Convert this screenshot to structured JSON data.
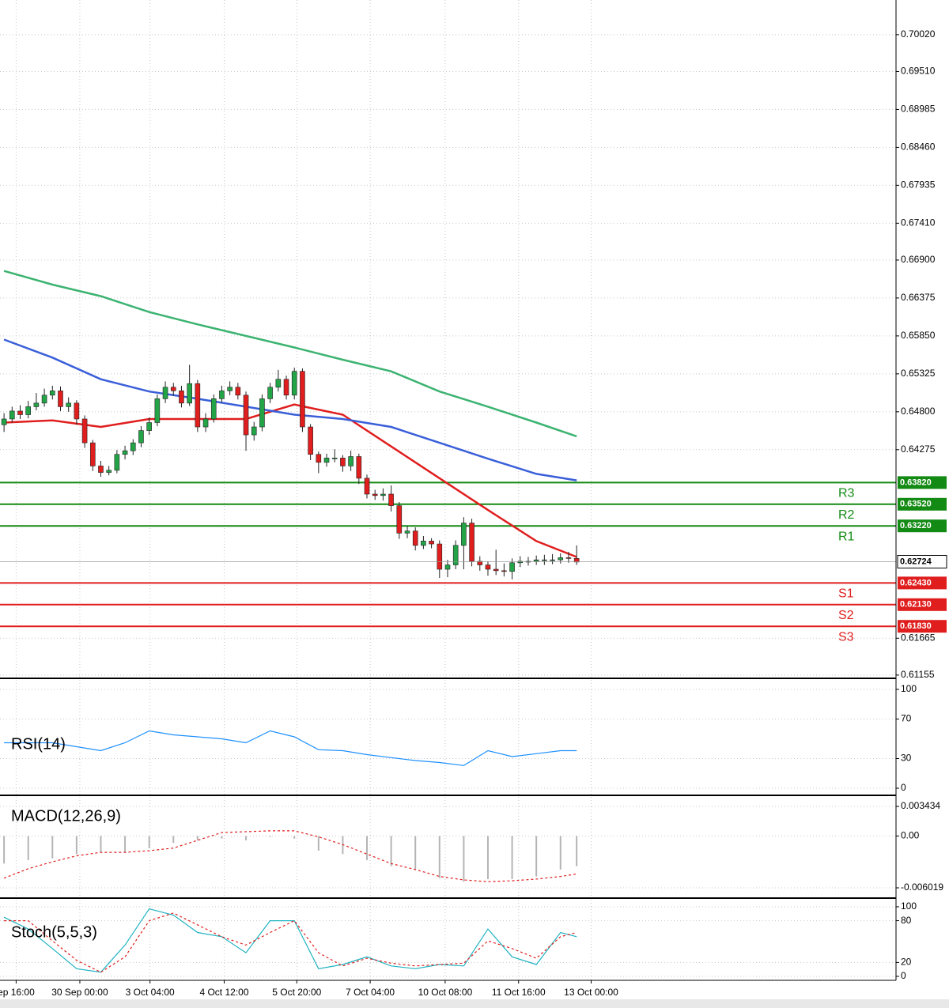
{
  "chart_data": [
    {
      "type": "candlestick",
      "open": [
        0.6462,
        0.647,
        0.6481,
        0.6476,
        0.6487,
        0.6492,
        0.6503,
        0.6509,
        0.6487,
        0.6492,
        0.647,
        0.6437,
        0.6405,
        0.6396,
        0.6399,
        0.6421,
        0.6426,
        0.6437,
        0.6454,
        0.6465,
        0.6498,
        0.6514,
        0.6509,
        0.6492,
        0.6519,
        0.6459,
        0.647,
        0.6498,
        0.6509,
        0.6514,
        0.6503,
        0.6448,
        0.6459,
        0.6498,
        0.6514,
        0.6525,
        0.6503,
        0.6536,
        0.6459,
        0.6421,
        0.641,
        0.6416,
        0.6416,
        0.6405,
        0.6418,
        0.6388,
        0.6366,
        0.6364,
        0.6366,
        0.635,
        0.6312,
        0.6315,
        0.6295,
        0.6301,
        0.6297,
        0.6262,
        0.6268,
        0.6295,
        0.6326,
        0.6273,
        0.6268,
        0.6262,
        0.626,
        0.6259,
        0.6271,
        0.6273,
        0.6273,
        0.6275,
        0.6275,
        0.6275,
        0.6278,
        0.6277
      ],
      "high": [
        0.6478,
        0.6487,
        0.6489,
        0.6495,
        0.6506,
        0.6512,
        0.6516,
        0.6515,
        0.65,
        0.6496,
        0.6475,
        0.6441,
        0.6412,
        0.6405,
        0.6427,
        0.6433,
        0.6442,
        0.646,
        0.6472,
        0.6504,
        0.6522,
        0.652,
        0.6516,
        0.6545,
        0.6524,
        0.6478,
        0.6504,
        0.6516,
        0.6522,
        0.652,
        0.6508,
        0.6466,
        0.6504,
        0.652,
        0.6538,
        0.653,
        0.6541,
        0.654,
        0.6463,
        0.6425,
        0.6422,
        0.6428,
        0.642,
        0.6426,
        0.6422,
        0.6393,
        0.6372,
        0.6374,
        0.6378,
        0.6355,
        0.6322,
        0.632,
        0.6308,
        0.6305,
        0.6302,
        0.6275,
        0.6302,
        0.6334,
        0.6332,
        0.628,
        0.6273,
        0.6289,
        0.627,
        0.6277,
        0.628,
        0.6279,
        0.6281,
        0.6282,
        0.6283,
        0.6284,
        0.6286,
        0.6295
      ],
      "low": [
        0.6452,
        0.6465,
        0.647,
        0.6471,
        0.6482,
        0.6487,
        0.6497,
        0.6481,
        0.648,
        0.6462,
        0.643,
        0.6398,
        0.639,
        0.6392,
        0.6395,
        0.6414,
        0.642,
        0.6431,
        0.6448,
        0.646,
        0.6492,
        0.6502,
        0.6486,
        0.6488,
        0.6452,
        0.6452,
        0.6465,
        0.6493,
        0.6503,
        0.6497,
        0.6426,
        0.644,
        0.6453,
        0.6492,
        0.6508,
        0.6497,
        0.6497,
        0.6452,
        0.6413,
        0.6395,
        0.6404,
        0.641,
        0.6397,
        0.6398,
        0.638,
        0.636,
        0.6358,
        0.6357,
        0.6342,
        0.6304,
        0.6305,
        0.6288,
        0.629,
        0.6291,
        0.625,
        0.6251,
        0.6262,
        0.6262,
        0.6266,
        0.626,
        0.6253,
        0.6254,
        0.6252,
        0.6248,
        0.6265,
        0.6267,
        0.6268,
        0.6268,
        0.6269,
        0.627,
        0.6271,
        0.6268
      ],
      "close": [
        0.647,
        0.6481,
        0.6476,
        0.6487,
        0.6492,
        0.6503,
        0.6509,
        0.6487,
        0.6492,
        0.647,
        0.6437,
        0.6405,
        0.6396,
        0.6399,
        0.6421,
        0.6426,
        0.6437,
        0.6454,
        0.6465,
        0.6498,
        0.6514,
        0.6509,
        0.6492,
        0.6519,
        0.6459,
        0.647,
        0.6498,
        0.6509,
        0.6514,
        0.6503,
        0.6448,
        0.6459,
        0.6498,
        0.6514,
        0.6525,
        0.6503,
        0.6536,
        0.6459,
        0.6421,
        0.641,
        0.6416,
        0.6416,
        0.6405,
        0.6418,
        0.6388,
        0.6366,
        0.6364,
        0.6366,
        0.635,
        0.6312,
        0.6315,
        0.6295,
        0.6301,
        0.6297,
        0.6262,
        0.6268,
        0.6295,
        0.6326,
        0.6273,
        0.6268,
        0.6262,
        0.626,
        0.6259,
        0.6271,
        0.6273,
        0.6273,
        0.6275,
        0.6275,
        0.6275,
        0.6278,
        0.6277,
        0.6272
      ],
      "up_color": "#22a447",
      "down_color": "#e01e1e",
      "moving_averages": [
        {
          "color": "#e01e1e",
          "x": [
            0,
            6,
            12,
            18,
            24,
            30,
            36,
            42,
            48,
            54,
            60,
            66,
            71
          ],
          "values": [
            0.6465,
            0.6468,
            0.6459,
            0.647,
            0.647,
            0.647,
            0.649,
            0.6476,
            0.6432,
            0.6388,
            0.6344,
            0.6301,
            0.6279
          ]
        },
        {
          "color": "#3a5fd9",
          "x": [
            0,
            6,
            12,
            18,
            24,
            30,
            36,
            42,
            48,
            54,
            60,
            66,
            71
          ],
          "values": [
            0.658,
            0.6555,
            0.6525,
            0.6508,
            0.6498,
            0.6487,
            0.6476,
            0.647,
            0.6459,
            0.6437,
            0.6415,
            0.6394,
            0.6385
          ]
        },
        {
          "color": "#3cb371",
          "x": [
            0,
            6,
            12,
            18,
            24,
            30,
            36,
            42,
            48,
            54,
            60,
            66,
            71
          ],
          "values": [
            0.6675,
            0.6656,
            0.664,
            0.6618,
            0.6601,
            0.6585,
            0.6569,
            0.6552,
            0.6536,
            0.6508,
            0.6487,
            0.6465,
            0.6446
          ]
        }
      ],
      "levels": [
        {
          "name": "R3",
          "value": 0.6382,
          "value_label": "0.63820",
          "color": "#138a13"
        },
        {
          "name": "R2",
          "value": 0.6352,
          "value_label": "0.63520",
          "color": "#138a13"
        },
        {
          "name": "R1",
          "value": 0.6322,
          "value_label": "0.63220",
          "color": "#138a13"
        },
        {
          "name": "S1",
          "value": 0.6243,
          "value_label": "0.62430",
          "color": "#e01e1e"
        },
        {
          "name": "S2",
          "value": 0.6213,
          "value_label": "0.62130",
          "color": "#e01e1e"
        },
        {
          "name": "S3",
          "value": 0.6183,
          "value_label": "0.61830",
          "color": "#e01e1e"
        }
      ],
      "current_price": 0.62724,
      "xlim": [
        -0.5,
        110.6
      ],
      "ylim": [
        0.6111,
        0.705
      ],
      "yticks": [
        {
          "value": 0.7002,
          "label": "0.70020"
        },
        {
          "value": 0.6951,
          "label": "0.69510"
        },
        0.68985,
        {
          "value": 0.6846,
          "label": "0.68460"
        },
        0.67935,
        {
          "value": 0.6741,
          "label": "0.67410"
        },
        {
          "value": 0.669,
          "label": "0.66900"
        },
        0.66375,
        {
          "value": 0.6585,
          "label": "0.65850"
        },
        0.65325,
        {
          "value": 0.648,
          "label": "0.64800"
        },
        0.64275,
        0.61665,
        0.61155
      ],
      "grid": true
    },
    {
      "type": "line",
      "title": "RSI(14)",
      "x": [
        0,
        3,
        6,
        9,
        12,
        15,
        18,
        21,
        24,
        27,
        30,
        33,
        36,
        39,
        42,
        45,
        48,
        51,
        54,
        57,
        60,
        63,
        66,
        69,
        71
      ],
      "series": [
        {
          "color": "#1e90ff",
          "values": [
            46,
            46,
            46,
            42,
            38,
            46,
            58,
            54,
            52,
            50,
            46,
            58,
            52,
            39,
            38,
            34,
            31,
            28,
            26,
            23,
            38,
            32,
            35,
            38,
            38
          ]
        }
      ],
      "xlim": [
        -0.5,
        110.6
      ],
      "ylim": [
        -6.4,
        109.6
      ],
      "yticks": [
        0,
        30,
        70,
        100
      ],
      "grid": true
    },
    {
      "type": "macd",
      "title": "MACD(12,26,9)",
      "x": [
        0,
        3,
        6,
        9,
        12,
        15,
        18,
        21,
        24,
        27,
        30,
        33,
        36,
        39,
        42,
        45,
        48,
        51,
        54,
        57,
        60,
        63,
        66,
        69,
        71
      ],
      "histogram": {
        "color": "#b4b4b4",
        "values": [
          -0.0032,
          -0.0028,
          -0.0026,
          -0.0021,
          -0.0019,
          -0.0019,
          -0.0014,
          -0.0008,
          -0.0005,
          -0.0003,
          -0.0005,
          -0.0001,
          -0.0003,
          -0.0017,
          -0.0021,
          -0.0028,
          -0.0035,
          -0.0039,
          -0.0049,
          -0.0053,
          -0.005,
          -0.005,
          -0.0047,
          -0.0039,
          -0.0035
        ]
      },
      "signal": {
        "color": "#e01e1e",
        "values": [
          -0.0049,
          -0.0038,
          -0.003,
          -0.0023,
          -0.0019,
          -0.0019,
          -0.0017,
          -0.0014,
          -0.0005,
          0.0004,
          0.0005,
          0.0006,
          0.0006,
          -0.0001,
          -0.001,
          -0.0021,
          -0.0032,
          -0.0039,
          -0.0047,
          -0.0051,
          -0.0053,
          -0.0052,
          -0.005,
          -0.0047,
          -0.0044
        ]
      },
      "xlim": [
        -0.5,
        110.6
      ],
      "ylim": [
        -0.00712,
        0.00454
      ],
      "yticks": [
        0.003434,
        {
          "value": 0,
          "label": "0.00"
        },
        -0.006019
      ],
      "grid": true
    },
    {
      "type": "line",
      "title": "Stoch(5,5,3)",
      "x": [
        0,
        3,
        6,
        9,
        12,
        15,
        18,
        21,
        24,
        27,
        30,
        33,
        36,
        39,
        42,
        45,
        48,
        51,
        54,
        57,
        60,
        63,
        66,
        69,
        71
      ],
      "series": [
        {
          "color": "#20b2c0",
          "values": [
            85,
            68,
            40,
            11,
            6,
            45,
            97,
            88,
            63,
            57,
            34,
            80,
            80,
            11,
            17,
            28,
            15,
            11,
            17,
            15,
            68,
            28,
            17,
            63,
            57
          ]
        },
        {
          "color": "#e01e1e",
          "dash": true,
          "values": [
            80,
            80,
            51,
            23,
            6,
            28,
            80,
            91,
            74,
            57,
            45,
            63,
            80,
            34,
            15,
            26,
            19,
            15,
            17,
            19,
            51,
            40,
            26,
            57,
            63
          ]
        }
      ],
      "xlim": [
        -0.5,
        110.6
      ],
      "ylim": [
        -5.7,
        110.2
      ],
      "yticks": [
        0,
        20,
        80,
        100
      ],
      "grid": true,
      "xticks": [
        {
          "value": 1.5,
          "label": "ep 16:00"
        },
        {
          "value": 9.4,
          "label": "30 Sep 00:00"
        },
        {
          "value": 18.1,
          "label": "3 Oct 04:00"
        },
        {
          "value": 27.3,
          "label": "4 Oct 12:00"
        },
        {
          "value": 36.3,
          "label": "5 Oct 20:00"
        },
        {
          "value": 45.4,
          "label": "7 Oct 04:00"
        },
        {
          "value": 54.7,
          "label": "10 Oct 08:00"
        },
        {
          "value": 63.8,
          "label": "11 Oct 16:00"
        },
        {
          "value": 72.8,
          "label": "13 Oct 00:00"
        }
      ]
    }
  ]
}
